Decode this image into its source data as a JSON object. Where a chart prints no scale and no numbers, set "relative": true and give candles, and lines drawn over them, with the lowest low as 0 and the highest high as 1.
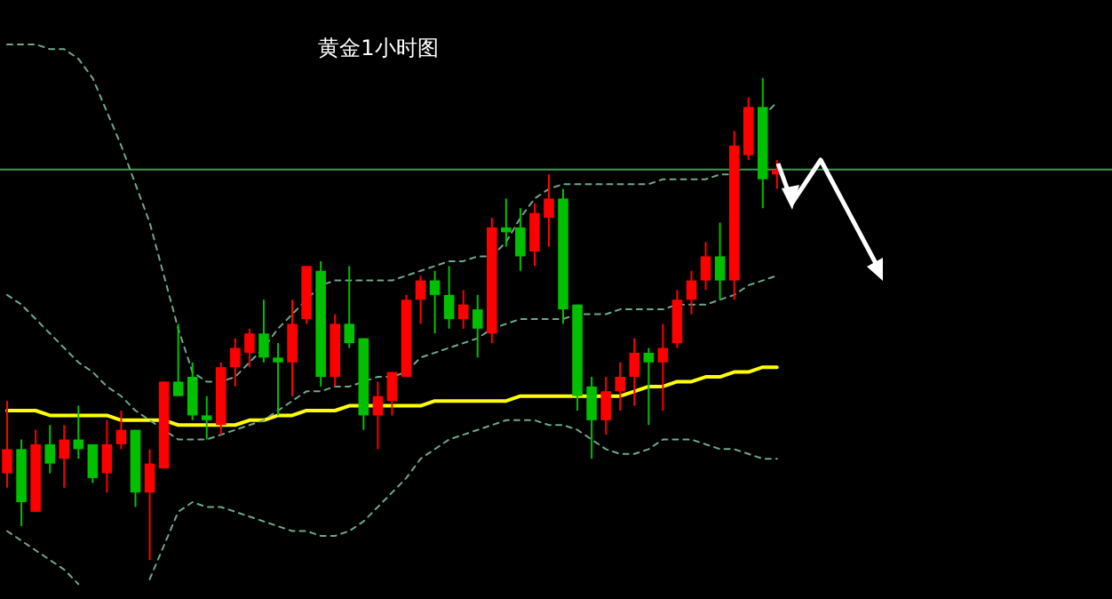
{
  "chart_data": {
    "type": "candlestick",
    "title": "黄金1小时图",
    "relative": true,
    "categories": [
      null,
      null,
      null,
      null,
      null,
      null,
      null,
      null,
      null,
      null,
      null,
      null,
      null,
      null,
      null,
      null,
      null,
      null,
      null,
      null,
      null,
      null,
      null,
      null,
      null,
      null,
      null,
      null,
      null,
      null,
      null,
      null,
      null,
      null,
      null,
      null,
      null,
      null,
      null,
      null,
      null,
      null,
      null,
      null,
      null,
      null,
      null,
      null,
      null,
      null,
      null,
      null,
      null,
      null,
      null,
      null,
      null,
      null,
      null,
      null,
      null,
      null,
      null,
      null,
      null,
      null,
      null,
      null,
      null,
      null,
      null,
      null,
      null,
      null,
      null,
      null,
      null,
      null
    ],
    "ohlc": [
      [
        0.18,
        0.33,
        0.15,
        0.23
      ],
      [
        0.23,
        0.25,
        0.07,
        0.12
      ],
      [
        0.1,
        0.27,
        0.1,
        0.24
      ],
      [
        0.24,
        0.28,
        0.18,
        0.2
      ],
      [
        0.21,
        0.28,
        0.15,
        0.25
      ],
      [
        0.25,
        0.32,
        0.21,
        0.23
      ],
      [
        0.24,
        0.24,
        0.16,
        0.17
      ],
      [
        0.18,
        0.29,
        0.14,
        0.24
      ],
      [
        0.24,
        0.31,
        0.23,
        0.27
      ],
      [
        0.27,
        0.27,
        0.11,
        0.14
      ],
      [
        0.14,
        0.23,
        0,
        0.2
      ],
      [
        0.19,
        0.37,
        0.19,
        0.37
      ],
      [
        0.37,
        0.49,
        0.34,
        0.34
      ],
      [
        0.38,
        0.41,
        0.29,
        0.3
      ],
      [
        0.3,
        0.34,
        0.25,
        0.29
      ],
      [
        0.28,
        0.41,
        0.26,
        0.4
      ],
      [
        0.4,
        0.46,
        0.36,
        0.44
      ],
      [
        0.43,
        0.48,
        0.4,
        0.47
      ],
      [
        0.47,
        0.54,
        0.41,
        0.42
      ],
      [
        0.42,
        0.45,
        0.3,
        0.41
      ],
      [
        0.41,
        0.54,
        0.34,
        0.49
      ],
      [
        0.5,
        0.61,
        0.49,
        0.61
      ],
      [
        0.6,
        0.62,
        0.36,
        0.38
      ],
      [
        0.38,
        0.51,
        0.36,
        0.49
      ],
      [
        0.49,
        0.61,
        0.44,
        0.45
      ],
      [
        0.46,
        0.46,
        0.27,
        0.3
      ],
      [
        0.3,
        0.37,
        0.23,
        0.34
      ],
      [
        0.33,
        0.39,
        0.3,
        0.39
      ],
      [
        0.38,
        0.55,
        0.38,
        0.54
      ],
      [
        0.54,
        0.59,
        0.49,
        0.58
      ],
      [
        0.58,
        0.6,
        0.47,
        0.55
      ],
      [
        0.55,
        0.61,
        0.48,
        0.5
      ],
      [
        0.5,
        0.56,
        0.48,
        0.53
      ],
      [
        0.52,
        0.55,
        0.42,
        0.48
      ],
      [
        0.47,
        0.71,
        0.45,
        0.69
      ],
      [
        0.69,
        0.75,
        0.65,
        0.68
      ],
      [
        0.69,
        0.73,
        0.6,
        0.63
      ],
      [
        0.64,
        0.74,
        0.61,
        0.72
      ],
      [
        0.71,
        0.8,
        0.65,
        0.75
      ],
      [
        0.75,
        0.77,
        0.49,
        0.52
      ],
      [
        0.53,
        0.53,
        0.31,
        0.34
      ],
      [
        0.36,
        0.38,
        0.21,
        0.29
      ],
      [
        0.29,
        0.38,
        0.26,
        0.35
      ],
      [
        0.35,
        0.41,
        0.31,
        0.38
      ],
      [
        0.38,
        0.46,
        0.32,
        0.43
      ],
      [
        0.43,
        0.44,
        0.28,
        0.41
      ],
      [
        0.41,
        0.49,
        0.31,
        0.44
      ],
      [
        0.45,
        0.56,
        0.44,
        0.54
      ],
      [
        0.54,
        0.6,
        0.51,
        0.58
      ],
      [
        0.58,
        0.66,
        0.56,
        0.63
      ],
      [
        0.63,
        0.7,
        0.54,
        0.58
      ],
      [
        0.58,
        0.89,
        0.54,
        0.86
      ],
      [
        0.84,
        0.96,
        0.83,
        0.94
      ],
      [
        0.94,
        1,
        0.73,
        0.79
      ],
      [
        0.8,
        0.83,
        0.77,
        0.81
      ],
      null,
      null,
      null,
      null,
      null,
      null,
      null,
      null,
      null,
      null,
      null,
      null,
      null,
      null,
      null,
      null,
      null,
      null,
      null,
      null,
      null,
      null,
      null
    ],
    "colors": [
      "#ff0000",
      "#00c000",
      "#ff0000",
      "#00c000",
      "#ff0000",
      "#00c000",
      "#00c000",
      "#ff0000",
      "#ff0000",
      "#00c000",
      "#ff0000",
      "#ff0000",
      "#00c000",
      "#00c000",
      "#00c000",
      "#ff0000",
      "#ff0000",
      "#ff0000",
      "#00c000",
      "#00c000",
      "#ff0000",
      "#ff0000",
      "#00c000",
      "#ff0000",
      "#00c000",
      "#00c000",
      "#ff0000",
      "#ff0000",
      "#ff0000",
      "#ff0000",
      "#00c000",
      "#00c000",
      "#ff0000",
      "#00c000",
      "#ff0000",
      "#00c000",
      "#00c000",
      "#ff0000",
      "#ff0000",
      "#00c000",
      "#00c000",
      "#00c000",
      "#ff0000",
      "#ff0000",
      "#ff0000",
      "#00c000",
      "#ff0000",
      "#ff0000",
      "#ff0000",
      "#ff0000",
      "#00c000",
      "#ff0000",
      "#ff0000",
      "#00c000",
      "#ff0000",
      null,
      null,
      null,
      null,
      null,
      null,
      null,
      null,
      null,
      null,
      null,
      null,
      null,
      null,
      null,
      null,
      null,
      null,
      null,
      null,
      null,
      null,
      null
    ],
    "series": [
      {
        "type": "line",
        "color": "#ffff00",
        "line_style": "solid",
        "values": [
          0.31,
          0.31,
          0.31,
          0.3,
          0.3,
          0.3,
          0.3,
          0.3,
          0.29,
          0.29,
          0.29,
          0.29,
          0.28,
          0.28,
          0.28,
          0.28,
          0.28,
          0.29,
          0.29,
          0.3,
          0.3,
          0.31,
          0.31,
          0.31,
          0.32,
          0.32,
          0.32,
          0.32,
          0.32,
          0.32,
          0.33,
          0.33,
          0.33,
          0.33,
          0.33,
          0.33,
          0.34,
          0.34,
          0.34,
          0.34,
          0.34,
          0.34,
          0.34,
          0.34,
          0.35,
          0.36,
          0.36,
          0.37,
          0.37,
          0.38,
          0.38,
          0.39,
          0.39,
          0.4,
          0.4,
          null,
          null,
          null,
          null,
          null,
          null,
          null,
          null,
          null,
          null,
          null,
          null,
          null,
          null,
          null,
          null,
          null,
          null,
          null,
          null,
          null,
          null,
          null
        ]
      },
      {
        "type": "line",
        "color": "#6fa88a",
        "line_style": "dashed",
        "values": [
          1.07,
          1.07,
          1.07,
          1.06,
          1.06,
          1.04,
          1.0,
          0.93,
          0.86,
          0.78,
          0.7,
          0.59,
          0.48,
          0.39,
          0.37,
          0.37,
          0.38,
          0.41,
          0.44,
          0.48,
          0.51,
          0.54,
          0.57,
          0.58,
          0.58,
          0.58,
          0.58,
          0.58,
          0.59,
          0.6,
          0.61,
          0.62,
          0.62,
          0.63,
          0.63,
          0.66,
          0.71,
          0.75,
          0.77,
          0.78,
          0.78,
          0.78,
          0.78,
          0.78,
          0.78,
          0.78,
          0.79,
          0.79,
          0.79,
          0.79,
          0.8,
          0.8,
          null,
          0.92,
          0.95,
          null,
          null,
          null,
          null,
          null,
          null,
          null,
          null,
          null,
          null,
          null,
          null,
          null,
          null,
          null,
          null,
          null,
          null,
          null,
          null,
          null,
          null,
          null
        ]
      },
      {
        "type": "line",
        "color": "#6fa88a",
        "line_style": "dashed",
        "values": [
          0.55,
          0.53,
          0.5,
          0.47,
          0.44,
          0.41,
          0.39,
          0.36,
          0.34,
          0.31,
          0.29,
          0.27,
          0.25,
          0.25,
          0.25,
          0.26,
          0.27,
          0.28,
          0.29,
          0.31,
          0.33,
          0.35,
          0.35,
          0.36,
          0.36,
          0.37,
          0.38,
          0.38,
          0.39,
          0.42,
          0.43,
          0.44,
          0.45,
          0.46,
          0.48,
          0.49,
          0.5,
          0.5,
          0.5,
          0.5,
          0.51,
          0.51,
          0.51,
          0.52,
          0.52,
          0.52,
          0.52,
          0.53,
          0.53,
          0.53,
          0.54,
          0.55,
          0.57,
          0.58,
          0.59,
          null,
          null,
          null,
          null,
          null,
          null,
          null,
          null,
          null,
          null,
          null,
          null,
          null,
          null,
          null,
          null,
          null,
          null,
          null,
          null,
          null,
          null,
          null
        ]
      },
      {
        "type": "line",
        "color": "#6fa88a",
        "line_style": "dashed",
        "values": [
          0.06,
          0.04,
          0.02,
          0,
          -0.02,
          -0.05,
          null,
          null,
          null,
          null,
          -0.04,
          0.03,
          0.1,
          0.12,
          0.11,
          0.11,
          0.1,
          0.09,
          0.08,
          0.07,
          0.06,
          0.06,
          0.05,
          0.05,
          0.06,
          0.08,
          0.11,
          0.14,
          0.17,
          0.21,
          0.23,
          0.25,
          0.26,
          0.27,
          0.28,
          0.29,
          0.29,
          0.29,
          0.28,
          0.28,
          0.27,
          0.25,
          0.23,
          0.22,
          0.22,
          0.23,
          0.25,
          0.25,
          0.25,
          0.24,
          0.23,
          0.23,
          0.22,
          0.21,
          0.21,
          null,
          null,
          null,
          null,
          null,
          null,
          null,
          null,
          null,
          null,
          null,
          null,
          null,
          null,
          null,
          null,
          null,
          null,
          null,
          null,
          null,
          null,
          null
        ]
      }
    ],
    "ref_lines": [
      {
        "axis": "y",
        "value": 0.81,
        "color": "#3c9c50"
      }
    ]
  }
}
